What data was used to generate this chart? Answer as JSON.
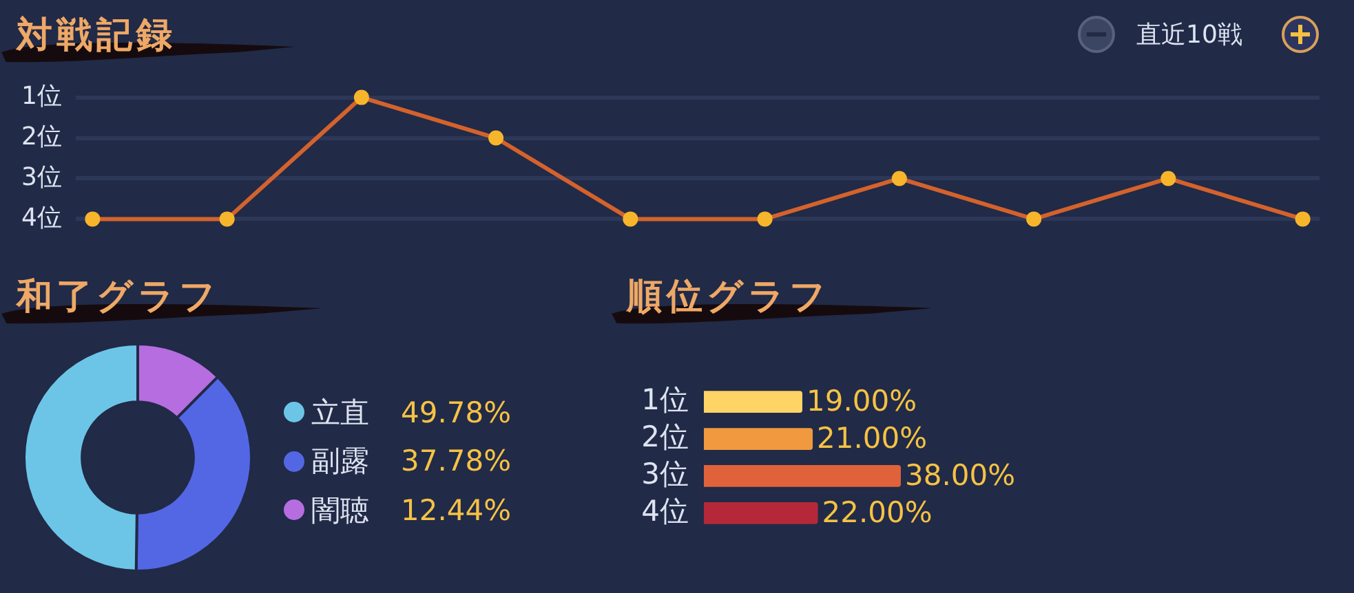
{
  "chart_data": [
    {
      "type": "line",
      "title": "対戦記録",
      "subtitle": "直近10戦",
      "categories": [
        null,
        null,
        null,
        null,
        null,
        null,
        null,
        null,
        null,
        null
      ],
      "series": [
        {
          "color": "#d4622c",
          "values": [
            4,
            4,
            1,
            2,
            4,
            4,
            3,
            4,
            3,
            4
          ]
        }
      ],
      "ylim": [
        4,
        1
      ],
      "yticks": [
        {
          "value": 1,
          "label": "1位"
        },
        {
          "value": 2,
          "label": "2位"
        },
        {
          "value": 3,
          "label": "3位"
        },
        {
          "value": 4,
          "label": "4位"
        }
      ],
      "grid": "y",
      "tick_labels": "y",
      "marker": "circle"
    },
    {
      "type": "donut",
      "title": "和了グラフ",
      "categories": [
        "立直",
        "副露",
        "闇聴"
      ],
      "values": [
        49.78,
        37.78,
        12.44
      ],
      "colors": [
        "#6cc5e6",
        "#5367e5",
        "#b66ddf"
      ],
      "value_labels": [
        "49.78%",
        "37.78%",
        "12.44%"
      ],
      "legend": "right"
    },
    {
      "type": "bar",
      "title": "順位グラフ",
      "orientation": "horizontal",
      "categories": [
        "1位",
        "2位",
        "3位",
        "4位"
      ],
      "values": [
        19,
        21,
        38,
        22
      ],
      "colors": [
        "#ffd466",
        "#f0993e",
        "#e0623a",
        "#b5283a"
      ],
      "value_labels": [
        "19.00%",
        "21.00%",
        "38.00%",
        "22.00%"
      ],
      "tick_labels": "y"
    }
  ]
}
